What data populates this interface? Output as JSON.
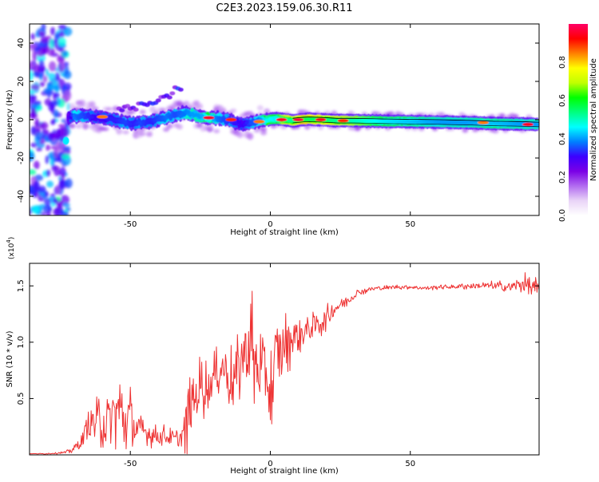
{
  "title": "C2E3.2023.159.06.30.R11",
  "chart_data": [
    {
      "type": "heatmap",
      "title": "C2E3.2023.159.06.30.R11",
      "xlabel": "Height of straight line (km)",
      "ylabel": "Frequency (Hz)",
      "xlim": [
        -86,
        96
      ],
      "ylim": [
        -50,
        50
      ],
      "xticks": [
        -50,
        0,
        50
      ],
      "yticks": [
        -40,
        -20,
        0,
        20,
        40
      ],
      "colorbar": {
        "label": "Normalized spectral amplitude",
        "range": [
          0,
          1
        ],
        "ticks": [
          "0.0",
          "0.2",
          "0.4",
          "0.6",
          "0.8"
        ],
        "tick_values": [
          0.0,
          0.2,
          0.4,
          0.6,
          0.8
        ],
        "colormap": "rainbow",
        "stops": [
          "#ffffff",
          "#e9d4f7",
          "#b26cf0",
          "#7b00e6",
          "#3c00ff",
          "#0080ff",
          "#00ffff",
          "#00ff80",
          "#00ff00",
          "#c0ff00",
          "#ffff00",
          "#ff8000",
          "#ff0000",
          "#ff0066"
        ]
      },
      "ridge": {
        "x": [
          -72,
          -70,
          -67,
          -64,
          -61,
          -58,
          -55,
          -52,
          -49,
          -46,
          -43,
          -40,
          -37,
          -34,
          -31,
          -28,
          -25,
          -22,
          -19,
          -16,
          -13,
          -10,
          -7,
          -4,
          -1,
          2,
          5,
          8,
          11,
          14,
          18,
          24,
          30,
          40,
          50,
          60,
          70,
          80,
          90,
          95
        ],
        "y": [
          1.5,
          1.8,
          2.0,
          1.5,
          1.0,
          0.5,
          -0.5,
          -1.5,
          -1.8,
          -1.5,
          -1.0,
          0.0,
          1.2,
          2.5,
          3.5,
          3.0,
          1.5,
          1.0,
          1.0,
          0.0,
          -1.0,
          -2.5,
          -2.0,
          -1.0,
          0.0,
          0.5,
          0.0,
          -0.5,
          0.0,
          0.2,
          0.0,
          -0.5,
          -0.5,
          -0.8,
          -1.0,
          -1.2,
          -1.5,
          -2.0,
          -2.2,
          -2.5
        ],
        "amplitude": [
          0.35,
          0.55,
          0.5,
          0.45,
          0.4,
          0.45,
          0.45,
          0.5,
          0.45,
          0.5,
          0.45,
          0.5,
          0.55,
          0.5,
          0.55,
          0.6,
          0.6,
          0.7,
          0.55,
          0.5,
          0.45,
          0.4,
          0.5,
          0.55,
          0.75,
          0.7,
          0.85,
          0.85,
          0.95,
          0.92,
          0.9,
          0.85,
          0.8,
          0.7,
          0.65,
          0.6,
          0.6,
          0.65,
          0.6,
          0.6
        ]
      },
      "hotspots": [
        {
          "x": -60,
          "y": 1.5,
          "a": 0.85
        },
        {
          "x": -22,
          "y": 1.0,
          "a": 0.95
        },
        {
          "x": -14,
          "y": 0.0,
          "a": 0.9
        },
        {
          "x": -4,
          "y": -1.0,
          "a": 0.85
        },
        {
          "x": 4,
          "y": 0.0,
          "a": 0.95
        },
        {
          "x": 10,
          "y": 0.0,
          "a": 0.97
        },
        {
          "x": 18,
          "y": 0.0,
          "a": 0.95
        },
        {
          "x": 26,
          "y": -0.5,
          "a": 0.9
        },
        {
          "x": 76,
          "y": -1.5,
          "a": 0.85
        },
        {
          "x": 92,
          "y": -2.5,
          "a": 0.95
        }
      ],
      "branch": {
        "x": [
          -62,
          -58,
          -54,
          -50,
          -46,
          -42,
          -38,
          -34,
          -32
        ],
        "y": [
          0,
          2,
          4,
          6,
          8,
          10,
          12,
          15,
          17
        ],
        "amplitude": [
          0.35,
          0.35,
          0.35,
          0.3,
          0.35,
          0.35,
          0.3,
          0.3,
          0.35
        ]
      },
      "scatter_region": {
        "x": [
          -86,
          -72
        ],
        "y": [
          -50,
          50
        ],
        "amplitude": [
          0.25,
          0.5
        ]
      },
      "outliers": [
        {
          "x": -73,
          "y": -11,
          "a": 0.45
        }
      ]
    },
    {
      "type": "line",
      "xlabel": "Height of straight line (km)",
      "ylabel": "SNR (10 * v/v)",
      "y_multiplier": "(x10^4)",
      "xlim": [
        -86,
        96
      ],
      "ylim": [
        0,
        1.7
      ],
      "xticks": [
        -50,
        0,
        50
      ],
      "yticks": [
        0.5,
        1.0,
        1.5
      ],
      "ytick_labels": [
        "0.5",
        "1.0",
        "1.5"
      ],
      "series": [
        {
          "color": "#ee3333",
          "x": [
            -86,
            -80,
            -74,
            -72,
            -70,
            -68,
            -66,
            -64,
            -62,
            -60,
            -58,
            -56,
            -54,
            -52,
            -50,
            -48,
            -46,
            -44,
            -42,
            -40,
            -38,
            -36,
            -34,
            -32,
            -30,
            -29,
            -28,
            -26,
            -24,
            -22,
            -20,
            -18,
            -16,
            -14,
            -12,
            -10,
            -8,
            -7,
            -6,
            -4,
            -2,
            -1,
            0,
            1,
            2,
            4,
            6,
            8,
            10,
            12,
            14,
            16,
            18,
            20,
            22,
            24,
            26,
            28,
            30,
            32,
            34,
            36,
            38,
            40,
            45,
            50,
            55,
            60,
            65,
            70,
            75,
            80,
            85,
            88,
            90,
            92,
            94,
            96
          ],
          "y": [
            0.01,
            0.01,
            0.02,
            0.03,
            0.06,
            0.1,
            0.2,
            0.3,
            0.28,
            0.33,
            0.25,
            0.37,
            0.4,
            0.3,
            0.35,
            0.22,
            0.22,
            0.2,
            0.17,
            0.16,
            0.18,
            0.15,
            0.14,
            0.15,
            0.25,
            0.5,
            0.45,
            0.55,
            0.62,
            0.6,
            0.7,
            0.75,
            0.78,
            0.65,
            0.7,
            0.85,
            0.95,
            1.05,
            0.8,
            0.75,
            0.7,
            0.72,
            0.5,
            0.6,
            0.9,
            0.95,
            0.98,
            1.05,
            1.05,
            1.1,
            1.12,
            1.15,
            1.18,
            1.22,
            1.27,
            1.32,
            1.35,
            1.38,
            1.42,
            1.45,
            1.46,
            1.47,
            1.48,
            1.48,
            1.49,
            1.49,
            1.48,
            1.49,
            1.49,
            1.5,
            1.5,
            1.5,
            1.49,
            1.5,
            1.52,
            1.5,
            1.48,
            1.45
          ],
          "noise": [
            0.0,
            0.005,
            0.01,
            0.02,
            0.04,
            0.06,
            0.12,
            0.14,
            0.2,
            0.3,
            0.3,
            0.32,
            0.32,
            0.28,
            0.25,
            0.15,
            0.12,
            0.1,
            0.1,
            0.08,
            0.08,
            0.08,
            0.08,
            0.1,
            0.3,
            0.35,
            0.25,
            0.25,
            0.28,
            0.2,
            0.2,
            0.2,
            0.22,
            0.3,
            0.32,
            0.3,
            0.35,
            0.6,
            0.4,
            0.35,
            0.35,
            0.35,
            0.45,
            0.35,
            0.3,
            0.3,
            0.25,
            0.2,
            0.2,
            0.18,
            0.15,
            0.12,
            0.12,
            0.1,
            0.08,
            0.07,
            0.06,
            0.05,
            0.04,
            0.03,
            0.03,
            0.02,
            0.02,
            0.02,
            0.02,
            0.02,
            0.02,
            0.02,
            0.02,
            0.03,
            0.03,
            0.04,
            0.05,
            0.06,
            0.08,
            0.1,
            0.1,
            0.1
          ]
        }
      ]
    }
  ]
}
